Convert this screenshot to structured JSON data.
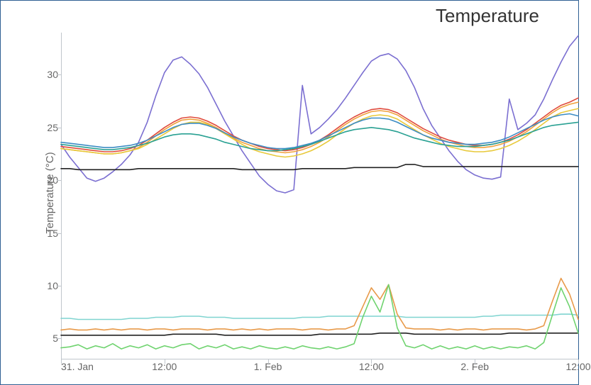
{
  "title": "Temperature",
  "background_color": "#ffffff",
  "frame_border_color": "#2f6093",
  "axis_color": "#c0c6cc",
  "tick_font_color": "#666666",
  "tick_font_size": 14,
  "title_font_size": 26,
  "y_axis": {
    "label": "Temperature (°C)",
    "min": 3,
    "max": 34,
    "ticks": [
      5,
      10,
      15,
      20,
      25,
      30
    ],
    "tick_len": 6
  },
  "x_axis": {
    "min": 0,
    "max": 60,
    "ticks": [
      {
        "pos": 0,
        "label": "31. Jan",
        "align": "start"
      },
      {
        "pos": 12,
        "label": "12:00"
      },
      {
        "pos": 24,
        "label": "1. Feb"
      },
      {
        "pos": 36,
        "label": "12:00"
      },
      {
        "pos": 48,
        "label": "2. Feb"
      },
      {
        "pos": 60,
        "label": "12:00"
      }
    ],
    "tick_len": 6
  },
  "series": [
    {
      "name": "purple",
      "color": "#7b6fd1",
      "width": 1.6,
      "y": [
        23.4,
        22.2,
        21.2,
        20.2,
        19.9,
        20.2,
        20.8,
        21.5,
        22.4,
        23.6,
        25.5,
        28.0,
        30.2,
        31.4,
        31.7,
        31.0,
        30.1,
        28.8,
        27.2,
        25.6,
        24.2,
        22.8,
        21.6,
        20.4,
        19.6,
        19.0,
        18.8,
        19.1,
        29.0,
        24.4,
        25.0,
        25.8,
        26.7,
        27.8,
        29.0,
        30.2,
        31.3,
        31.8,
        32.0,
        31.5,
        30.4,
        28.8,
        26.8,
        25.2,
        24.0,
        22.8,
        21.8,
        21.0,
        20.5,
        20.2,
        20.1,
        20.3,
        27.7,
        24.8,
        25.4,
        26.2,
        27.7,
        29.5,
        31.2,
        32.7,
        33.7
      ]
    },
    {
      "name": "red",
      "color": "#e04b3c",
      "width": 1.6,
      "y": [
        23.2,
        23.1,
        23.0,
        22.9,
        22.8,
        22.7,
        22.7,
        22.8,
        23.0,
        23.3,
        23.8,
        24.4,
        25.0,
        25.5,
        25.9,
        26.0,
        25.9,
        25.6,
        25.2,
        24.7,
        24.2,
        23.8,
        23.5,
        23.2,
        23.0,
        22.9,
        22.8,
        22.9,
        23.1,
        23.4,
        23.8,
        24.3,
        24.9,
        25.5,
        26.0,
        26.4,
        26.7,
        26.8,
        26.7,
        26.4,
        25.9,
        25.4,
        24.9,
        24.5,
        24.1,
        23.8,
        23.6,
        23.4,
        23.3,
        23.3,
        23.4,
        23.6,
        23.9,
        24.3,
        24.8,
        25.4,
        26.0,
        26.6,
        27.1,
        27.4,
        27.8
      ]
    },
    {
      "name": "orange",
      "color": "#f0a13c",
      "width": 1.6,
      "y": [
        23.0,
        22.9,
        22.8,
        22.7,
        22.6,
        22.5,
        22.5,
        22.6,
        22.8,
        23.1,
        23.6,
        24.2,
        24.8,
        25.3,
        25.7,
        25.8,
        25.7,
        25.4,
        25.0,
        24.5,
        24.0,
        23.6,
        23.3,
        23.0,
        22.8,
        22.7,
        22.6,
        22.7,
        22.9,
        23.2,
        23.6,
        24.1,
        24.7,
        25.3,
        25.8,
        26.2,
        26.5,
        26.6,
        26.5,
        26.2,
        25.7,
        25.2,
        24.7,
        24.3,
        23.9,
        23.6,
        23.4,
        23.2,
        23.1,
        23.1,
        23.2,
        23.4,
        23.7,
        24.1,
        24.6,
        25.2,
        25.8,
        26.4,
        26.9,
        27.2,
        27.4
      ]
    },
    {
      "name": "yellow",
      "color": "#e8c93a",
      "width": 1.6,
      "y": [
        23.0,
        22.9,
        22.8,
        22.7,
        22.6,
        22.5,
        22.5,
        22.6,
        22.8,
        23.0,
        23.4,
        23.9,
        24.4,
        24.9,
        25.3,
        25.5,
        25.5,
        25.3,
        24.9,
        24.4,
        23.9,
        23.4,
        23.0,
        22.7,
        22.5,
        22.3,
        22.2,
        22.3,
        22.5,
        22.8,
        23.2,
        23.7,
        24.3,
        24.9,
        25.4,
        25.8,
        26.1,
        26.2,
        26.1,
        25.8,
        25.3,
        24.8,
        24.3,
        23.9,
        23.5,
        23.2,
        23.0,
        22.8,
        22.7,
        22.7,
        22.8,
        23.0,
        23.3,
        23.7,
        24.2,
        24.8,
        25.4,
        26.0,
        26.4,
        26.6,
        26.8
      ]
    },
    {
      "name": "midblue",
      "color": "#3c8cc4",
      "width": 1.6,
      "y": [
        23.6,
        23.5,
        23.4,
        23.3,
        23.2,
        23.1,
        23.1,
        23.2,
        23.3,
        23.5,
        23.8,
        24.2,
        24.6,
        25.0,
        25.3,
        25.4,
        25.4,
        25.2,
        24.9,
        24.5,
        24.1,
        23.8,
        23.5,
        23.3,
        23.1,
        23.0,
        23.0,
        23.1,
        23.3,
        23.5,
        23.8,
        24.2,
        24.6,
        25.0,
        25.4,
        25.7,
        25.9,
        25.9,
        25.8,
        25.5,
        25.1,
        24.7,
        24.3,
        24.0,
        23.8,
        23.6,
        23.5,
        23.4,
        23.4,
        23.5,
        23.6,
        23.8,
        24.1,
        24.5,
        24.9,
        25.3,
        25.7,
        26.0,
        26.2,
        26.3,
        26.1
      ]
    },
    {
      "name": "teal",
      "color": "#2aa193",
      "width": 1.6,
      "y": [
        23.4,
        23.3,
        23.2,
        23.1,
        23.0,
        22.9,
        22.9,
        23.0,
        23.1,
        23.3,
        23.5,
        23.8,
        24.1,
        24.3,
        24.4,
        24.4,
        24.3,
        24.1,
        23.9,
        23.6,
        23.4,
        23.2,
        23.0,
        22.9,
        22.8,
        22.8,
        22.9,
        23.0,
        23.2,
        23.4,
        23.7,
        24.0,
        24.3,
        24.6,
        24.8,
        24.9,
        25.0,
        24.9,
        24.8,
        24.6,
        24.3,
        24.0,
        23.8,
        23.6,
        23.4,
        23.3,
        23.2,
        23.2,
        23.2,
        23.3,
        23.4,
        23.6,
        23.8,
        24.1,
        24.4,
        24.7,
        25.0,
        25.2,
        25.3,
        25.4,
        25.5
      ]
    },
    {
      "name": "black-upper",
      "color": "#222222",
      "width": 1.6,
      "y": [
        21.1,
        21.1,
        21.0,
        21.0,
        21.0,
        21.0,
        21.0,
        21.0,
        21.0,
        21.1,
        21.1,
        21.1,
        21.1,
        21.1,
        21.1,
        21.1,
        21.1,
        21.1,
        21.1,
        21.1,
        21.1,
        21.0,
        21.0,
        21.0,
        21.0,
        21.0,
        21.0,
        21.0,
        21.1,
        21.1,
        21.1,
        21.1,
        21.1,
        21.1,
        21.2,
        21.2,
        21.2,
        21.2,
        21.2,
        21.2,
        21.5,
        21.5,
        21.3,
        21.3,
        21.3,
        21.3,
        21.3,
        21.3,
        21.3,
        21.3,
        21.3,
        21.3,
        21.3,
        21.3,
        21.3,
        21.3,
        21.3,
        21.3,
        21.3,
        21.3,
        21.3
      ]
    },
    {
      "name": "cyan-lower",
      "color": "#7fd4d0",
      "width": 1.6,
      "y": [
        6.9,
        6.9,
        6.8,
        6.8,
        6.8,
        6.8,
        6.8,
        6.8,
        6.9,
        6.9,
        6.9,
        7.0,
        7.0,
        7.0,
        7.1,
        7.1,
        7.1,
        7.0,
        7.0,
        7.0,
        6.9,
        6.9,
        6.9,
        6.9,
        6.9,
        6.9,
        6.9,
        6.9,
        7.0,
        7.0,
        7.0,
        7.1,
        7.1,
        7.1,
        7.1,
        7.1,
        7.1,
        7.1,
        7.1,
        7.1,
        7.0,
        7.0,
        7.0,
        7.0,
        7.0,
        7.0,
        7.0,
        7.0,
        7.0,
        7.1,
        7.1,
        7.2,
        7.2,
        7.2,
        7.2,
        7.2,
        7.2,
        7.2,
        7.3,
        7.3,
        7.2
      ]
    },
    {
      "name": "orange-lower",
      "color": "#e89a4a",
      "width": 1.6,
      "y": [
        5.8,
        5.9,
        5.8,
        5.8,
        5.9,
        5.8,
        5.9,
        5.8,
        5.9,
        5.9,
        5.8,
        5.9,
        5.9,
        5.8,
        5.9,
        5.9,
        5.9,
        5.8,
        5.9,
        5.9,
        5.8,
        5.9,
        5.8,
        5.9,
        5.8,
        5.9,
        5.9,
        5.9,
        5.8,
        5.9,
        5.9,
        5.8,
        5.9,
        5.9,
        6.2,
        8.0,
        9.8,
        8.7,
        10.1,
        7.3,
        6.0,
        5.9,
        5.9,
        5.9,
        5.8,
        5.9,
        5.8,
        5.9,
        5.9,
        5.8,
        5.9,
        5.9,
        5.9,
        5.9,
        5.8,
        5.9,
        6.2,
        8.5,
        10.7,
        9.2,
        6.8
      ]
    },
    {
      "name": "black-lower",
      "color": "#222222",
      "width": 1.6,
      "y": [
        5.3,
        5.3,
        5.3,
        5.3,
        5.3,
        5.3,
        5.3,
        5.3,
        5.3,
        5.3,
        5.3,
        5.3,
        5.3,
        5.4,
        5.4,
        5.4,
        5.4,
        5.4,
        5.4,
        5.3,
        5.3,
        5.3,
        5.3,
        5.3,
        5.3,
        5.3,
        5.3,
        5.3,
        5.3,
        5.3,
        5.4,
        5.4,
        5.4,
        5.4,
        5.4,
        5.4,
        5.4,
        5.5,
        5.5,
        5.5,
        5.5,
        5.4,
        5.4,
        5.4,
        5.4,
        5.4,
        5.4,
        5.4,
        5.4,
        5.4,
        5.4,
        5.4,
        5.5,
        5.5,
        5.5,
        5.5,
        5.5,
        5.5,
        5.5,
        5.5,
        5.5
      ]
    },
    {
      "name": "green-lower",
      "color": "#6fd36f",
      "width": 1.6,
      "y": [
        4.1,
        4.2,
        4.4,
        4.0,
        4.3,
        4.1,
        4.5,
        4.0,
        4.3,
        4.1,
        4.4,
        4.0,
        4.3,
        4.1,
        4.4,
        4.5,
        4.0,
        4.3,
        4.1,
        4.4,
        4.0,
        4.2,
        4.0,
        4.3,
        4.1,
        4.0,
        4.2,
        4.0,
        4.3,
        4.1,
        4.0,
        4.2,
        4.0,
        4.2,
        4.5,
        7.0,
        9.0,
        7.5,
        10.1,
        6.0,
        4.3,
        4.1,
        4.4,
        4.0,
        4.3,
        4.0,
        4.2,
        4.0,
        4.3,
        4.0,
        4.2,
        4.0,
        4.2,
        4.1,
        4.3,
        4.0,
        4.6,
        7.2,
        9.8,
        8.0,
        5.5
      ]
    }
  ]
}
